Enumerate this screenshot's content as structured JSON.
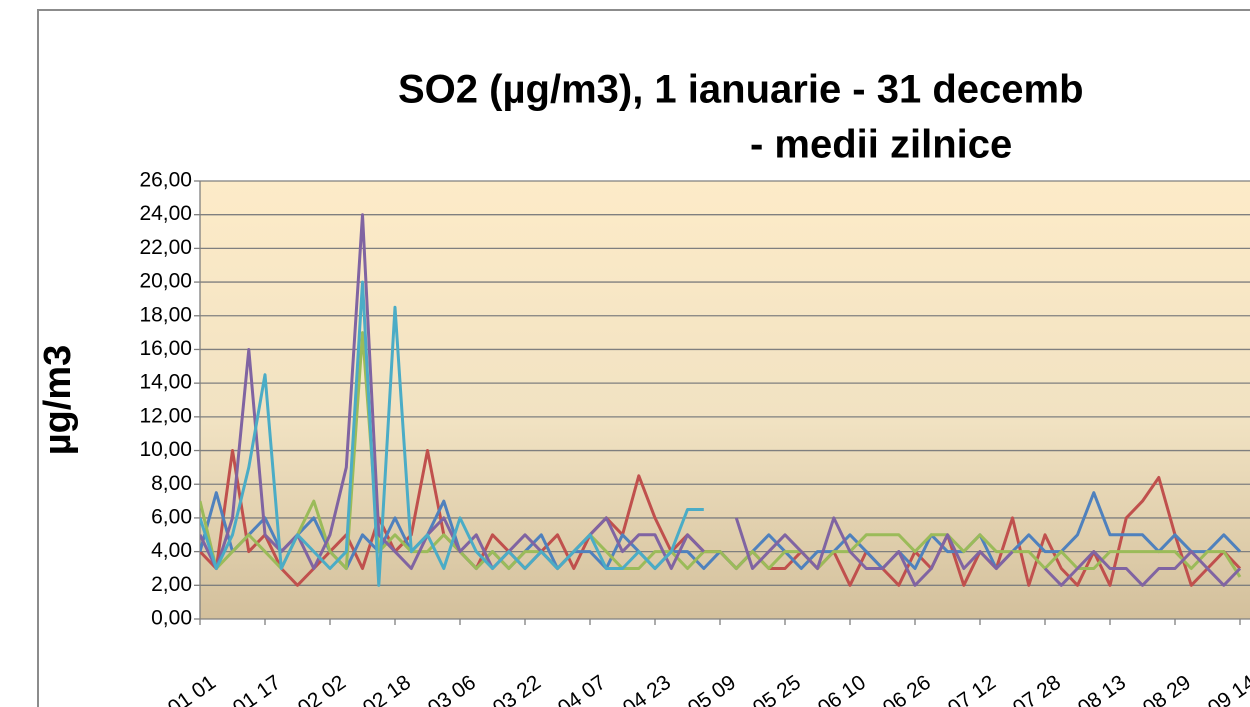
{
  "chart_data": {
    "type": "line",
    "title": "SO2 (µg/m3), 1 ianuarie - 31 decemb",
    "subtitle": "- medii zilnice",
    "y_label": "µg/m3",
    "categories": [
      "01 01",
      null,
      null,
      null,
      "01 17",
      null,
      null,
      null,
      "02 02",
      null,
      null,
      null,
      "02 18",
      null,
      null,
      null,
      "03 06",
      null,
      null,
      null,
      "03 22",
      null,
      null,
      null,
      "04 07",
      null,
      null,
      null,
      "04 23",
      null,
      null,
      null,
      "05 09",
      null,
      null,
      null,
      "05 25",
      null,
      null,
      null,
      "06 10",
      null,
      null,
      null,
      "06 26",
      null,
      null,
      null,
      "07 12",
      null,
      null,
      null,
      "07 28",
      null,
      null,
      null,
      "08 13",
      null,
      null,
      null,
      "08 29",
      null,
      null,
      null,
      "09 14"
    ],
    "series": [
      {
        "color": "#c0504d",
        "values": [
          4,
          3,
          10,
          4,
          5,
          3,
          2,
          3,
          4,
          5,
          3,
          6,
          4,
          5,
          10,
          5,
          4,
          3,
          5,
          4,
          3,
          4,
          5,
          3,
          5,
          6,
          5,
          8.5,
          6,
          4,
          5,
          4,
          4,
          3,
          4,
          3,
          3,
          4,
          3,
          4,
          2,
          4,
          3,
          2,
          4,
          3,
          5,
          2,
          4,
          3,
          6,
          2,
          5,
          3,
          2,
          4,
          2,
          6,
          7,
          8.4,
          5,
          2,
          3,
          4,
          3
        ]
      },
      {
        "color": "#4f81bd",
        "values": [
          4,
          7.5,
          4,
          5,
          6,
          4,
          5,
          6,
          4,
          3,
          5,
          4,
          6,
          4,
          5,
          7,
          4,
          3,
          4,
          3,
          4,
          5,
          3,
          4,
          4,
          3,
          5,
          4,
          3,
          4,
          4,
          3,
          4,
          3,
          4,
          5,
          4,
          3,
          4,
          4,
          5,
          4,
          3,
          4,
          3,
          5,
          4,
          4,
          5,
          3,
          4,
          5,
          4,
          4,
          5,
          7.5,
          5,
          5,
          5,
          4,
          5,
          4,
          4,
          5,
          4
        ]
      },
      {
        "color": "#9bbb59",
        "values": [
          7,
          3,
          4,
          5,
          4,
          3,
          5,
          7,
          4,
          3,
          17,
          4,
          5,
          4,
          4,
          5,
          4,
          3,
          4,
          3,
          4,
          4,
          3,
          4,
          5,
          4,
          3,
          3,
          4,
          4,
          3,
          4,
          4,
          3,
          4,
          3,
          4,
          4,
          3,
          4,
          4,
          5,
          5,
          5,
          4,
          5,
          5,
          4,
          5,
          4,
          4,
          4,
          3,
          4,
          3,
          3,
          4,
          4,
          4,
          4,
          4,
          3,
          4,
          4,
          2.5
        ]
      },
      {
        "color": "#8064a2",
        "values": [
          5,
          3,
          6,
          16,
          5,
          4,
          5,
          3,
          5,
          9,
          24,
          5,
          4,
          3,
          5,
          6,
          4,
          5,
          3,
          4,
          5,
          4,
          3,
          4,
          5,
          6,
          4,
          5,
          5,
          3,
          5,
          4,
          null,
          6,
          3,
          4,
          5,
          4,
          3,
          6,
          4,
          3,
          3,
          4,
          2,
          3,
          5,
          3,
          4,
          3,
          4,
          null,
          3,
          2,
          3,
          4,
          3,
          3,
          2,
          3,
          3,
          4,
          3,
          2,
          3
        ]
      },
      {
        "color": "#4bacc6",
        "values": [
          6,
          3,
          5,
          9,
          14.5,
          3,
          5,
          4,
          3,
          4,
          20,
          2,
          18.5,
          4,
          5,
          3,
          6,
          4,
          3,
          4,
          3,
          4,
          3,
          4,
          5,
          3,
          3,
          4,
          3,
          4,
          6.5,
          6.5,
          null,
          null,
          null,
          null,
          null,
          null,
          null,
          null,
          null,
          null,
          null,
          null,
          null,
          null,
          null,
          null,
          null,
          null,
          null,
          null,
          null,
          null,
          null,
          null,
          null,
          null,
          null,
          null,
          null,
          null,
          null,
          null,
          null
        ]
      }
    ],
    "ylim": [
      0,
      26
    ],
    "yticks": [
      {
        "value": 0,
        "label": "0,00"
      },
      {
        "value": 2,
        "label": "2,00"
      },
      {
        "value": 4,
        "label": "4,00"
      },
      {
        "value": 6,
        "label": "6,00"
      },
      {
        "value": 8,
        "label": "8,00"
      },
      {
        "value": 10,
        "label": "10,00"
      },
      {
        "value": 12,
        "label": "12,00"
      },
      {
        "value": 14,
        "label": "14,00"
      },
      {
        "value": 16,
        "label": "16,00"
      },
      {
        "value": 18,
        "label": "18,00"
      },
      {
        "value": 20,
        "label": "20,00"
      },
      {
        "value": 22,
        "label": "22,00"
      },
      {
        "value": 24,
        "label": "24,00"
      },
      {
        "value": 26,
        "label": "26,00"
      }
    ],
    "grid": true
  }
}
